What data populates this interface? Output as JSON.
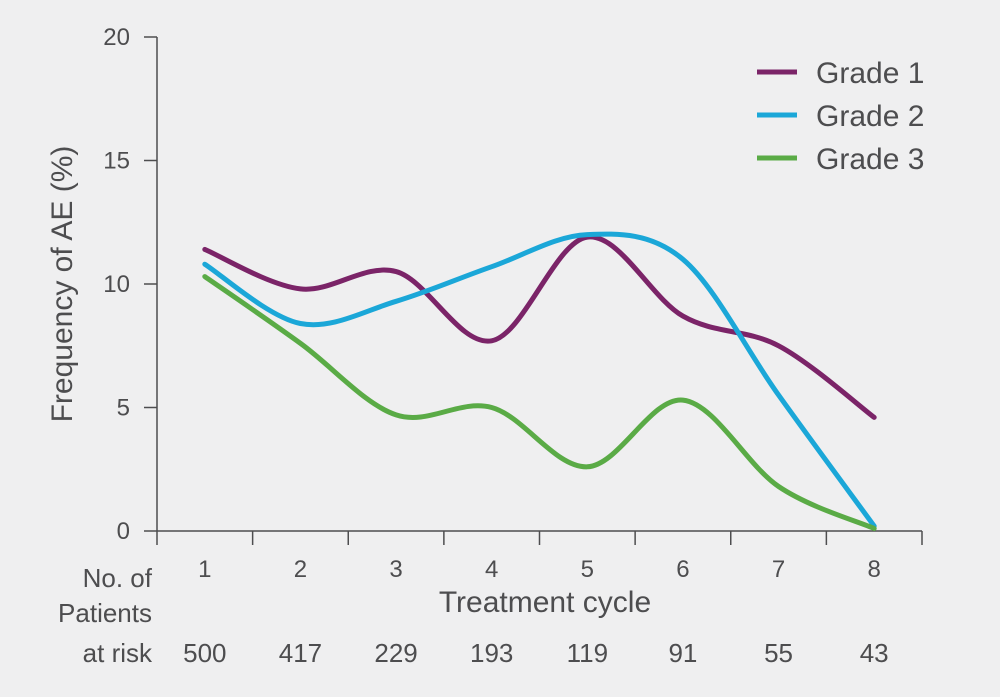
{
  "chart_data": {
    "type": "line",
    "title": "",
    "xlabel": "Treatment cycle",
    "ylabel": "Frequency of AE (%)",
    "x": [
      1,
      2,
      3,
      4,
      5,
      6,
      7,
      8
    ],
    "xlim": [
      0.5,
      8.5
    ],
    "ylim": [
      0,
      20
    ],
    "yticks": [
      0,
      5,
      10,
      15,
      20
    ],
    "grid": false,
    "legend_position": "top-right",
    "series": [
      {
        "name": "Grade 1",
        "color": "#7b2468",
        "values": [
          11.4,
          9.8,
          10.5,
          7.7,
          11.9,
          8.7,
          7.5,
          4.6
        ]
      },
      {
        "name": "Grade 2",
        "color": "#1ba7d8",
        "values": [
          10.8,
          8.4,
          9.3,
          10.7,
          12.0,
          11.0,
          5.5,
          0.2
        ]
      },
      {
        "name": "Grade 3",
        "color": "#5aab46",
        "values": [
          10.3,
          7.6,
          4.7,
          5.0,
          2.6,
          5.3,
          1.8,
          0.1
        ]
      }
    ],
    "patients_at_risk": {
      "label_line1": "No. of",
      "label_line2": "Patients",
      "label_line3": "at risk",
      "values": [
        "500",
        "417",
        "229",
        "193",
        "119",
        "91",
        "55",
        "43"
      ]
    }
  }
}
